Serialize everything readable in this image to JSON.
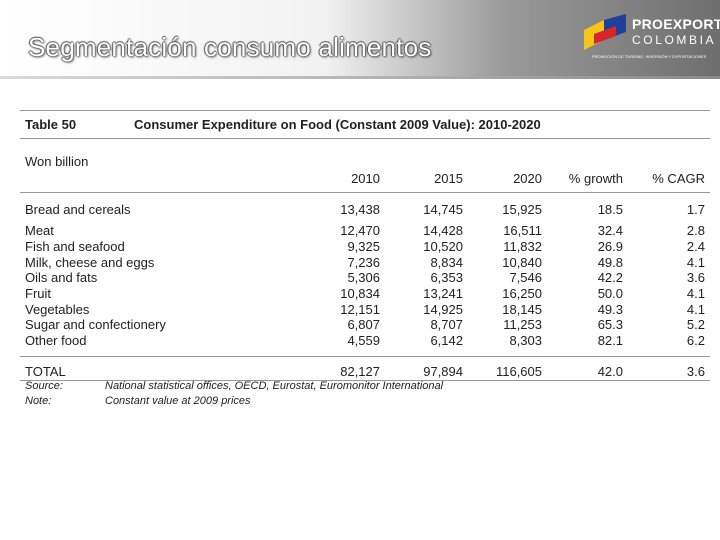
{
  "slide": {
    "title": "Segmentación consumo alimentos"
  },
  "logo": {
    "name": "PROEXPORT",
    "country": "COLOMBIA",
    "tagline": "PROMOCIÓN DE TURISMO, INVERSIÓN Y EXPORTACIONES",
    "colors": {
      "yellow": "#f5c518",
      "blue": "#1f3f99",
      "red": "#d8252a"
    }
  },
  "table": {
    "number": "Table 50",
    "caption": "Consumer Expenditure on Food (Constant 2009 Value): 2010-2020",
    "units": "Won billion",
    "columns": [
      "2010",
      "2015",
      "2020",
      "% growth",
      "% CAGR"
    ],
    "rows": [
      {
        "label": "Bread and cereals",
        "values": [
          "13,438",
          "14,745",
          "15,925",
          "18.5",
          "1.7"
        ]
      },
      {
        "label": "Meat",
        "values": [
          "12,470",
          "14,428",
          "16,511",
          "32.4",
          "2.8"
        ]
      },
      {
        "label": "Fish and seafood",
        "values": [
          "9,325",
          "10,520",
          "11,832",
          "26.9",
          "2.4"
        ]
      },
      {
        "label": "Milk, cheese and eggs",
        "values": [
          "7,236",
          "8,834",
          "10,840",
          "49.8",
          "4.1"
        ]
      },
      {
        "label": "Oils and fats",
        "values": [
          "5,306",
          "6,353",
          "7,546",
          "42.2",
          "3.6"
        ]
      },
      {
        "label": "Fruit",
        "values": [
          "10,834",
          "13,241",
          "16,250",
          "50.0",
          "4.1"
        ]
      },
      {
        "label": "Vegetables",
        "values": [
          "12,151",
          "14,925",
          "18,145",
          "49.3",
          "4.1"
        ]
      },
      {
        "label": "Sugar and confectionery",
        "values": [
          "6,807",
          "8,707",
          "11,253",
          "65.3",
          "5.2"
        ]
      },
      {
        "label": "Other food",
        "values": [
          "4,559",
          "6,142",
          "8,303",
          "82.1",
          "6.2"
        ]
      }
    ],
    "total": {
      "label": "TOTAL",
      "values": [
        "82,127",
        "97,894",
        "116,605",
        "42.0",
        "3.6"
      ]
    },
    "source_label": "Source:",
    "source_text": "National statistical offices, OECD, Eurostat, Euromonitor International",
    "note_label": "Note:",
    "note_text": "Constant value at 2009 prices"
  }
}
